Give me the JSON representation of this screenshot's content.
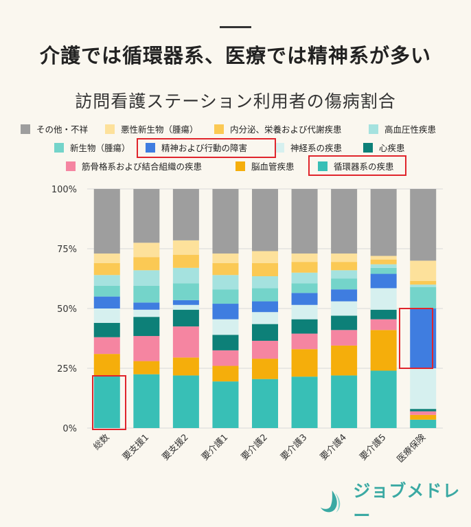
{
  "headline": "介護では循環器系、医療では精神系が多い",
  "logo_text": "ジョブメドレー",
  "highlight_color": "#e0242b",
  "chart_data": {
    "type": "bar",
    "stacked": true,
    "percent": true,
    "title": "訪問看護ステーション利用者の傷病割合",
    "xlabel": "",
    "ylabel": "",
    "ylim": [
      0,
      100
    ],
    "yticks": [
      "0%",
      "25%",
      "50%",
      "75%",
      "100%"
    ],
    "grid": true,
    "legend_position": "top",
    "categories": [
      "総数",
      "要支援1",
      "要支援2",
      "要介護1",
      "要介護2",
      "要介護3",
      "要介護4",
      "要介護5",
      "医療保険"
    ],
    "series": [
      {
        "name": "循環器系の疾患",
        "color": "#38bfb6",
        "values": [
          22,
          22.5,
          22,
          19.5,
          20.5,
          21.5,
          22,
          24,
          3.5
        ],
        "highlighted": true
      },
      {
        "name": "脳血管疾患",
        "color": "#f5ae0b",
        "values": [
          9,
          5.5,
          7.5,
          6.5,
          8.5,
          11.5,
          12.5,
          17,
          2
        ]
      },
      {
        "name": "筋骨格系および結合組織の疾患",
        "color": "#f585a1",
        "values": [
          7,
          10.5,
          13,
          6.5,
          7.5,
          6.5,
          6.5,
          4.5,
          1.5
        ]
      },
      {
        "name": "心疾患",
        "color": "#0d8078",
        "values": [
          6,
          8,
          7,
          6.5,
          7,
          6,
          6,
          4,
          1
        ]
      },
      {
        "name": "神経系の疾患",
        "color": "#d6f0ef",
        "values": [
          6,
          3,
          2,
          6.5,
          5,
          6,
          6,
          9,
          17
        ]
      },
      {
        "name": "精神および行動の障害",
        "color": "#3f7de0",
        "values": [
          5,
          3,
          2,
          6.5,
          4.5,
          5,
          5,
          6,
          25
        ],
        "highlighted": true
      },
      {
        "name": "新生物（腫瘍）",
        "color": "#74d4ca",
        "values": [
          4.5,
          7,
          7,
          6,
          5.5,
          4,
          4.5,
          2.5,
          9
        ]
      },
      {
        "name": "高血圧性疾患",
        "color": "#a5e2df",
        "values": [
          4.5,
          6.5,
          6.5,
          6,
          5,
          4.5,
          3.5,
          1.5,
          1
        ]
      },
      {
        "name": "内分泌、栄養および代謝疾患",
        "color": "#fbc954",
        "values": [
          5,
          5.5,
          5.5,
          5,
          5.5,
          4.5,
          3.5,
          2,
          1.5
        ]
      },
      {
        "name": "悪性新生物（腫瘍）",
        "color": "#fde19b",
        "values": [
          4,
          6,
          6,
          4,
          5,
          3.5,
          3.5,
          1.5,
          8.5
        ]
      },
      {
        "name": "その他・不祥",
        "color": "#9e9e9e",
        "values": [
          27,
          22.5,
          21.5,
          27,
          26,
          27,
          27,
          28,
          30
        ]
      }
    ]
  },
  "legend_rows": [
    [
      "その他・不祥",
      "悪性新生物（腫瘍）",
      "内分泌、栄養および代謝疾患",
      "高血圧性疾患"
    ],
    [
      "新生物（腫瘍）",
      "精神および行動の障害",
      "神経系の疾患",
      "心疾患"
    ],
    [
      "筋骨格系および結合組織の疾患",
      "脳血管疾患",
      "循環器系の疾患"
    ]
  ]
}
